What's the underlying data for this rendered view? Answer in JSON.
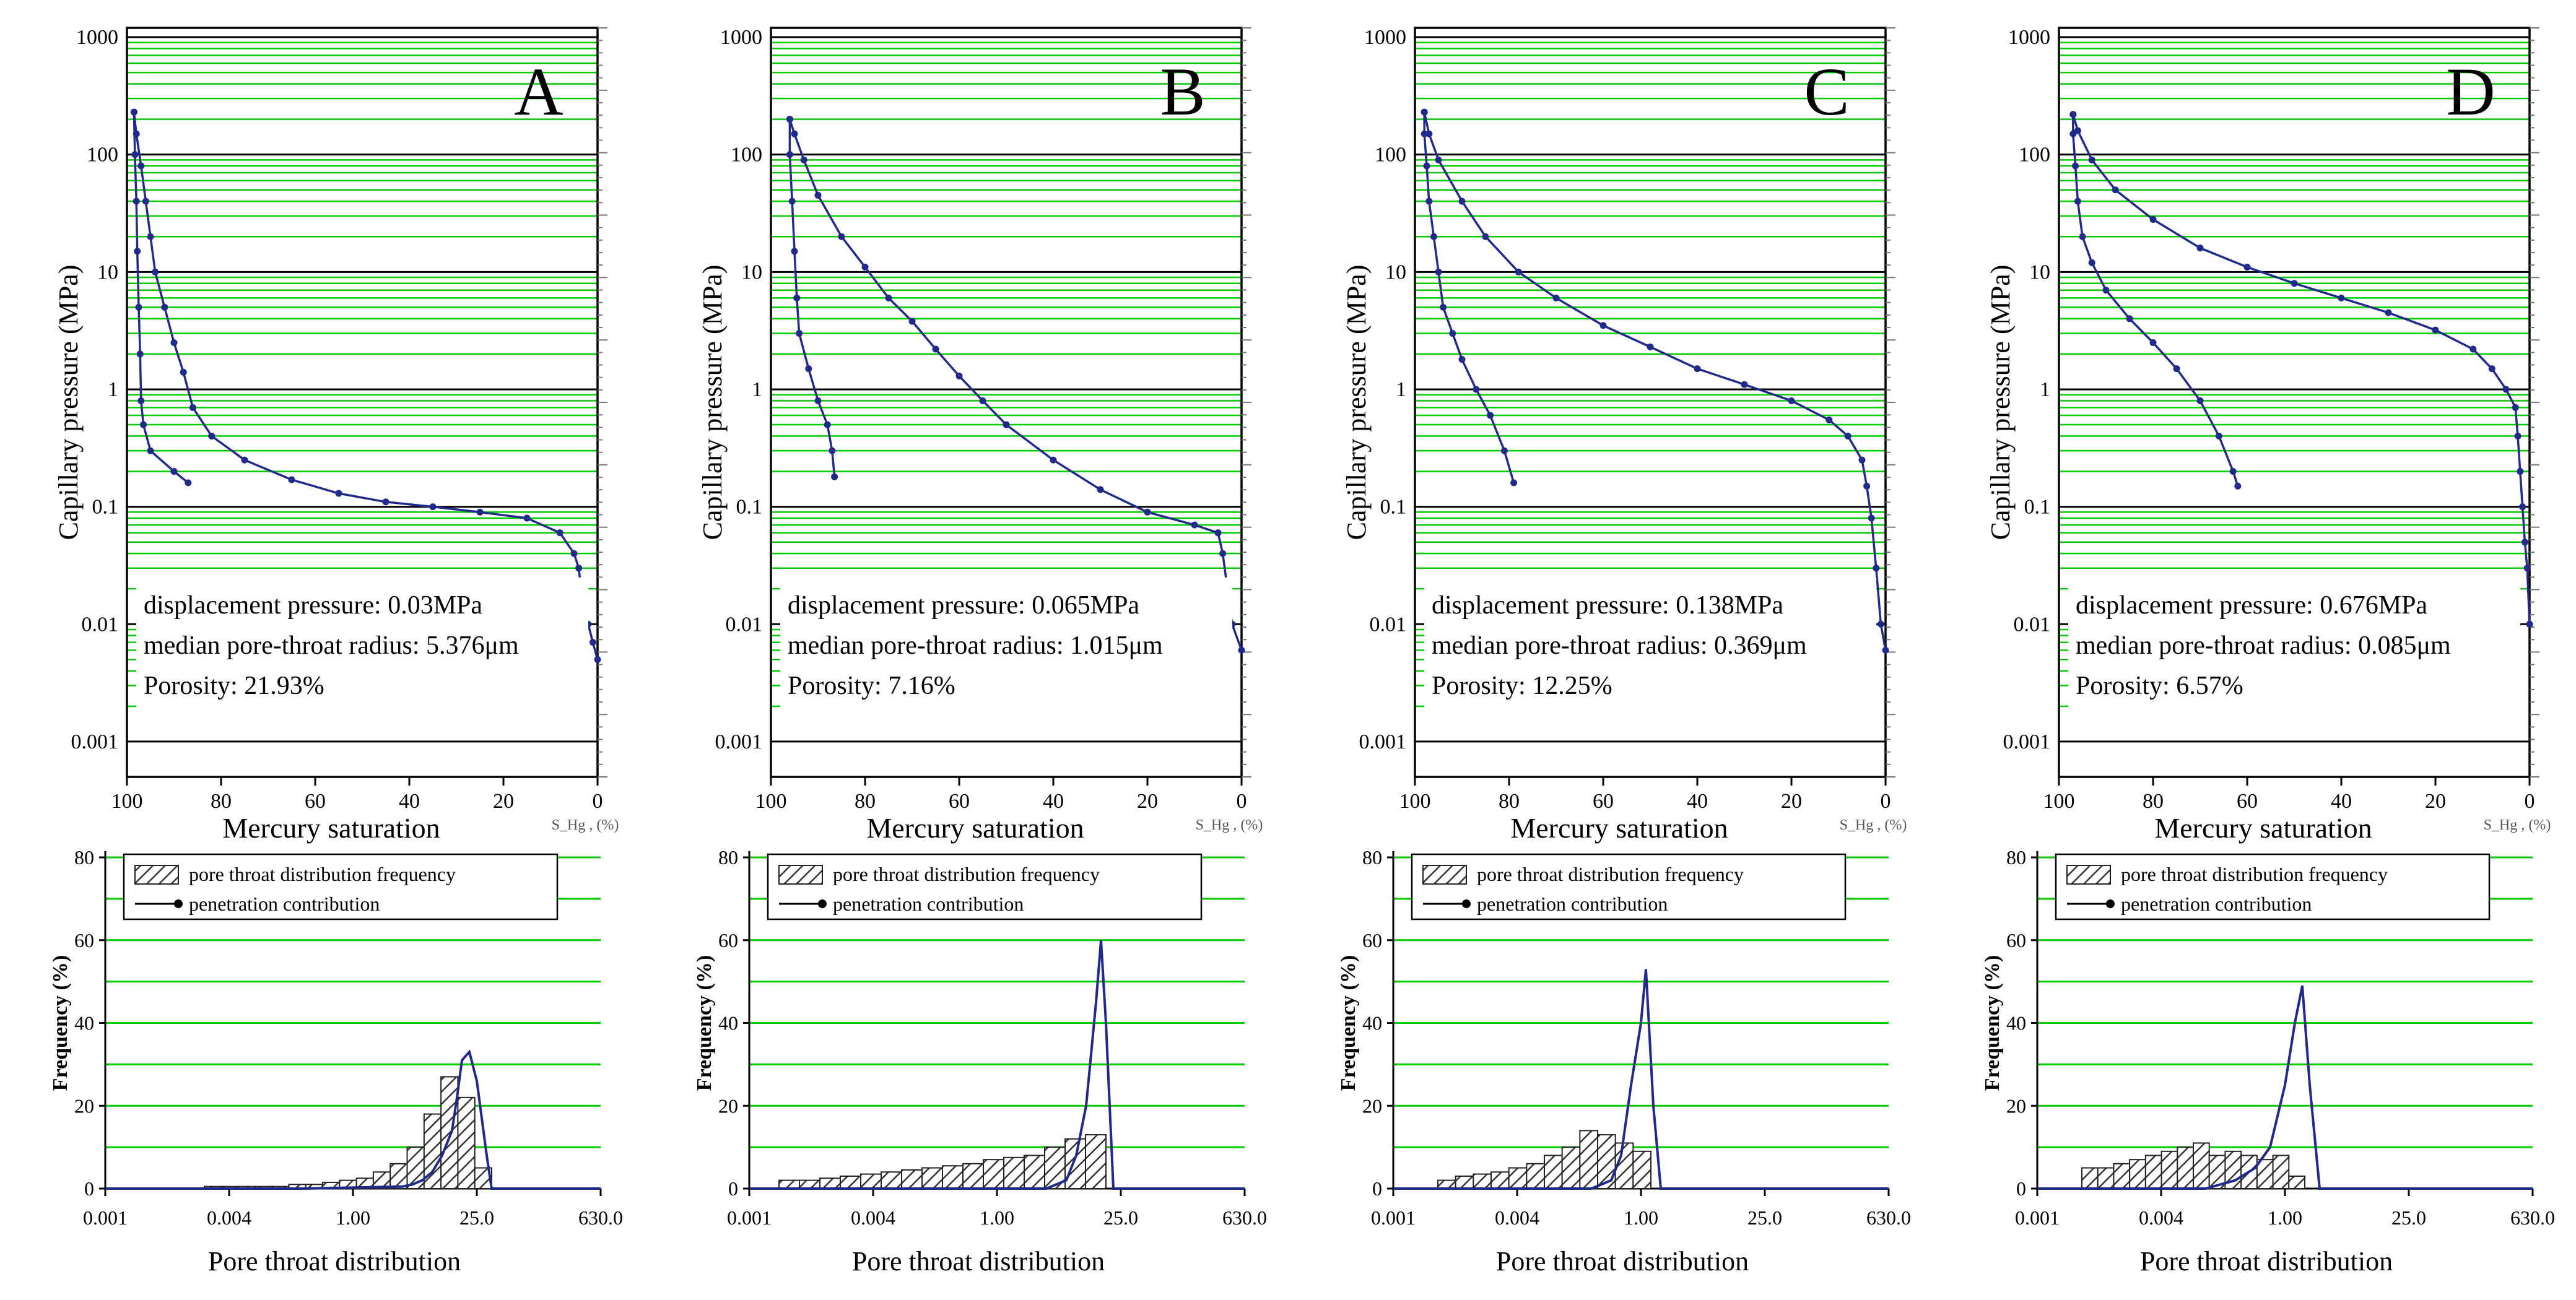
{
  "colors": {
    "grid_green": "#00cc00",
    "curve_blue": "#1f2a8a",
    "axis_black": "#000000",
    "hatch": "#333333"
  },
  "chart_data": [
    {
      "panel": "A",
      "type": "line",
      "scale": "log-y",
      "xlabel": "Mercury saturation",
      "xunit": "S_Hg , (%)",
      "ylabel": "Capillary pressure (MPa)",
      "xlim": [
        100,
        0
      ],
      "ylim": [
        0.0005,
        1200
      ],
      "xticks": [
        "100",
        "80",
        "60",
        "40",
        "20",
        "0"
      ],
      "yticks": [
        "0.001",
        "0.01",
        "0.1",
        "1",
        "10",
        "100",
        "1000"
      ],
      "annotations": [
        "displacement pressure: 0.03MPa",
        "median pore-throat radius: 5.376μm",
        "Porosity: 21.93%"
      ],
      "intrusion": [
        [
          0,
          0.005
        ],
        [
          1,
          0.007
        ],
        [
          2,
          0.01
        ],
        [
          3,
          0.015
        ],
        [
          3.5,
          0.02
        ],
        [
          4,
          0.03
        ],
        [
          5,
          0.04
        ],
        [
          8,
          0.06
        ],
        [
          15,
          0.08
        ],
        [
          25,
          0.09
        ],
        [
          35,
          0.1
        ],
        [
          45,
          0.11
        ],
        [
          55,
          0.13
        ],
        [
          65,
          0.17
        ],
        [
          75,
          0.25
        ],
        [
          82,
          0.4
        ],
        [
          86,
          0.7
        ],
        [
          88,
          1.4
        ],
        [
          90,
          2.5
        ],
        [
          92,
          5
        ],
        [
          94,
          10
        ],
        [
          95,
          20
        ],
        [
          96,
          40
        ],
        [
          97,
          80
        ],
        [
          98,
          150
        ],
        [
          98.5,
          230
        ]
      ],
      "withdrawal": [
        [
          98.5,
          230
        ],
        [
          98.3,
          100
        ],
        [
          98,
          40
        ],
        [
          97.8,
          15
        ],
        [
          97.5,
          5
        ],
        [
          97.2,
          2
        ],
        [
          97,
          0.8
        ],
        [
          96.5,
          0.5
        ],
        [
          95,
          0.3
        ],
        [
          90,
          0.2
        ],
        [
          87,
          0.16
        ]
      ]
    },
    {
      "panel": "B",
      "type": "line",
      "scale": "log-y",
      "xlabel": "Mercury saturation",
      "xunit": "S_Hg , (%)",
      "ylabel": "Capillary pressure (MPa)",
      "xlim": [
        100,
        0
      ],
      "ylim": [
        0.0005,
        1200
      ],
      "xticks": [
        "100",
        "80",
        "60",
        "40",
        "20",
        "0"
      ],
      "yticks": [
        "0.001",
        "0.01",
        "0.1",
        "1",
        "10",
        "100",
        "1000"
      ],
      "annotations": [
        "displacement pressure: 0.065MPa",
        "median pore-throat radius: 1.015μm",
        "Porosity: 7.16%"
      ],
      "intrusion": [
        [
          0,
          0.006
        ],
        [
          2,
          0.01
        ],
        [
          3,
          0.02
        ],
        [
          4,
          0.04
        ],
        [
          5,
          0.06
        ],
        [
          10,
          0.07
        ],
        [
          20,
          0.09
        ],
        [
          30,
          0.14
        ],
        [
          40,
          0.25
        ],
        [
          50,
          0.5
        ],
        [
          55,
          0.8
        ],
        [
          60,
          1.3
        ],
        [
          65,
          2.2
        ],
        [
          70,
          3.8
        ],
        [
          75,
          6
        ],
        [
          80,
          11
        ],
        [
          85,
          20
        ],
        [
          90,
          45
        ],
        [
          93,
          90
        ],
        [
          95,
          150
        ],
        [
          96,
          200
        ]
      ],
      "withdrawal": [
        [
          96,
          200
        ],
        [
          96,
          100
        ],
        [
          95.5,
          40
        ],
        [
          95,
          15
        ],
        [
          94.5,
          6
        ],
        [
          94,
          3
        ],
        [
          92,
          1.5
        ],
        [
          90,
          0.8
        ],
        [
          88,
          0.5
        ],
        [
          87,
          0.3
        ],
        [
          86.5,
          0.18
        ]
      ]
    },
    {
      "panel": "C",
      "type": "line",
      "scale": "log-y",
      "xlabel": "Mercury saturation",
      "xunit": "S_Hg , (%)",
      "ylabel": "Capillary pressure (MPa)",
      "xlim": [
        100,
        0
      ],
      "ylim": [
        0.0005,
        1200
      ],
      "xticks": [
        "100",
        "80",
        "60",
        "40",
        "20",
        "0"
      ],
      "yticks": [
        "0.001",
        "0.01",
        "0.1",
        "1",
        "10",
        "100",
        "1000"
      ],
      "annotations": [
        "displacement pressure: 0.138MPa",
        "median pore-throat radius: 0.369μm",
        "Porosity: 12.25%"
      ],
      "intrusion": [
        [
          0,
          0.006
        ],
        [
          1,
          0.01
        ],
        [
          2,
          0.03
        ],
        [
          3,
          0.08
        ],
        [
          4,
          0.15
        ],
        [
          5,
          0.25
        ],
        [
          8,
          0.4
        ],
        [
          12,
          0.55
        ],
        [
          20,
          0.8
        ],
        [
          30,
          1.1
        ],
        [
          40,
          1.5
        ],
        [
          50,
          2.3
        ],
        [
          60,
          3.5
        ],
        [
          70,
          6
        ],
        [
          78,
          10
        ],
        [
          85,
          20
        ],
        [
          90,
          40
        ],
        [
          95,
          90
        ],
        [
          97,
          150
        ],
        [
          98,
          230
        ]
      ],
      "withdrawal": [
        [
          98,
          230
        ],
        [
          98,
          150
        ],
        [
          97.5,
          80
        ],
        [
          97,
          40
        ],
        [
          96,
          20
        ],
        [
          95,
          10
        ],
        [
          94,
          5
        ],
        [
          92,
          3
        ],
        [
          90,
          1.8
        ],
        [
          87,
          1
        ],
        [
          84,
          0.6
        ],
        [
          81,
          0.3
        ],
        [
          79,
          0.16
        ]
      ]
    },
    {
      "panel": "D",
      "type": "line",
      "scale": "log-y",
      "xlabel": "Mercury saturation",
      "xunit": "S_Hg , (%)",
      "ylabel": "Capillary pressure (MPa)",
      "xlim": [
        100,
        0
      ],
      "ylim": [
        0.0005,
        1200
      ],
      "xticks": [
        "100",
        "80",
        "60",
        "40",
        "20",
        "0"
      ],
      "yticks": [
        "0.001",
        "0.01",
        "0.1",
        "1",
        "10",
        "100",
        "1000"
      ],
      "annotations": [
        "displacement pressure: 0.676MPa",
        "median pore-throat radius: 0.085μm",
        "Porosity: 6.57%"
      ],
      "intrusion": [
        [
          0,
          0.01
        ],
        [
          0.5,
          0.03
        ],
        [
          1,
          0.05
        ],
        [
          1.5,
          0.1
        ],
        [
          2,
          0.2
        ],
        [
          2.5,
          0.4
        ],
        [
          3,
          0.7
        ],
        [
          5,
          1
        ],
        [
          8,
          1.5
        ],
        [
          12,
          2.2
        ],
        [
          20,
          3.2
        ],
        [
          30,
          4.5
        ],
        [
          40,
          6
        ],
        [
          50,
          8
        ],
        [
          60,
          11
        ],
        [
          70,
          16
        ],
        [
          80,
          28
        ],
        [
          88,
          50
        ],
        [
          93,
          90
        ],
        [
          96,
          160
        ],
        [
          97,
          220
        ]
      ],
      "withdrawal": [
        [
          97,
          220
        ],
        [
          97,
          150
        ],
        [
          96.5,
          80
        ],
        [
          96,
          40
        ],
        [
          95,
          20
        ],
        [
          93,
          12
        ],
        [
          90,
          7
        ],
        [
          85,
          4
        ],
        [
          80,
          2.5
        ],
        [
          75,
          1.5
        ],
        [
          70,
          0.8
        ],
        [
          66,
          0.4
        ],
        [
          63,
          0.2
        ],
        [
          62,
          0.15
        ]
      ]
    },
    {
      "panel": "A",
      "type": "bar",
      "xlabel": "Pore throat distribution",
      "ylabel": "Frequency (%)",
      "ylim": [
        0,
        80
      ],
      "xtick_labels": [
        "0.001",
        "0.004",
        "1.00",
        "25.0",
        "630.0"
      ],
      "yticks": [
        "0",
        "20",
        "40",
        "60",
        "80"
      ],
      "legend": [
        "pore throat distribution frequency",
        "penetration contribution"
      ],
      "bins_start": 0.2,
      "bins_end": 0.78,
      "frequency": [
        0.5,
        0.5,
        0.5,
        0.5,
        0.5,
        1,
        1,
        1.5,
        2,
        2.5,
        4,
        6,
        10,
        18,
        27,
        22,
        5
      ],
      "contribution": [
        [
          0.0,
          0
        ],
        [
          0.4,
          0
        ],
        [
          0.6,
          0.5
        ],
        [
          0.62,
          1
        ],
        [
          0.64,
          2
        ],
        [
          0.66,
          4
        ],
        [
          0.68,
          8
        ],
        [
          0.7,
          14
        ],
        [
          0.71,
          22
        ],
        [
          0.72,
          31
        ],
        [
          0.735,
          33
        ],
        [
          0.75,
          26
        ],
        [
          0.77,
          8
        ],
        [
          0.78,
          0
        ],
        [
          1.0,
          0
        ]
      ]
    },
    {
      "panel": "B",
      "type": "bar",
      "xlabel": "Pore throat distribution",
      "ylabel": "Frequency (%)",
      "ylim": [
        0,
        80
      ],
      "xtick_labels": [
        "0.001",
        "0.004",
        "1.00",
        "25.0",
        "630.0"
      ],
      "yticks": [
        "0",
        "20",
        "40",
        "60",
        "80"
      ],
      "legend": [
        "pore throat distribution frequency",
        "penetration contribution"
      ],
      "bins_start": 0.06,
      "bins_end": 0.72,
      "frequency": [
        2,
        2,
        2.5,
        3,
        3.5,
        4,
        4.5,
        5,
        5.5,
        6,
        7,
        7.5,
        8,
        10,
        12,
        13
      ],
      "contribution": [
        [
          0.0,
          0
        ],
        [
          0.6,
          0
        ],
        [
          0.64,
          2
        ],
        [
          0.66,
          8
        ],
        [
          0.68,
          20
        ],
        [
          0.7,
          45
        ],
        [
          0.71,
          60
        ],
        [
          0.72,
          40
        ],
        [
          0.735,
          0
        ],
        [
          1.0,
          0
        ]
      ]
    },
    {
      "panel": "C",
      "type": "bar",
      "xlabel": "Pore throat distribution",
      "ylabel": "Frequency (%)",
      "ylim": [
        0,
        80
      ],
      "xtick_labels": [
        "0.001",
        "0.004",
        "1.00",
        "25.0",
        "630.0"
      ],
      "yticks": [
        "0",
        "20",
        "40",
        "60",
        "80"
      ],
      "legend": [
        "pore throat distribution frequency",
        "penetration contribution"
      ],
      "bins_start": 0.09,
      "bins_end": 0.52,
      "frequency": [
        2,
        3,
        3.5,
        4,
        5,
        6,
        8,
        10,
        14,
        13,
        11,
        9
      ],
      "contribution": [
        [
          0.0,
          0
        ],
        [
          0.4,
          0
        ],
        [
          0.44,
          2
        ],
        [
          0.46,
          8
        ],
        [
          0.48,
          25
        ],
        [
          0.5,
          40
        ],
        [
          0.51,
          53
        ],
        [
          0.525,
          20
        ],
        [
          0.54,
          0
        ],
        [
          1.0,
          0
        ]
      ]
    },
    {
      "panel": "D",
      "type": "bar",
      "xlabel": "Pore throat distribution",
      "ylabel": "Frequency (%)",
      "ylim": [
        0,
        80
      ],
      "xtick_labels": [
        "0.001",
        "0.004",
        "1.00",
        "25.0",
        "630.0"
      ],
      "yticks": [
        "0",
        "20",
        "40",
        "60",
        "80"
      ],
      "legend": [
        "pore throat distribution frequency",
        "penetration contribution"
      ],
      "bins_start": 0.09,
      "bins_end": 0.54,
      "frequency": [
        5,
        5,
        6,
        7,
        8,
        9,
        10,
        11,
        8,
        9,
        8,
        7,
        8,
        3
      ],
      "contribution": [
        [
          0.0,
          0
        ],
        [
          0.34,
          0
        ],
        [
          0.4,
          2
        ],
        [
          0.44,
          5
        ],
        [
          0.47,
          10
        ],
        [
          0.5,
          25
        ],
        [
          0.52,
          40
        ],
        [
          0.535,
          49
        ],
        [
          0.55,
          25
        ],
        [
          0.57,
          0
        ],
        [
          1.0,
          0
        ]
      ]
    }
  ]
}
